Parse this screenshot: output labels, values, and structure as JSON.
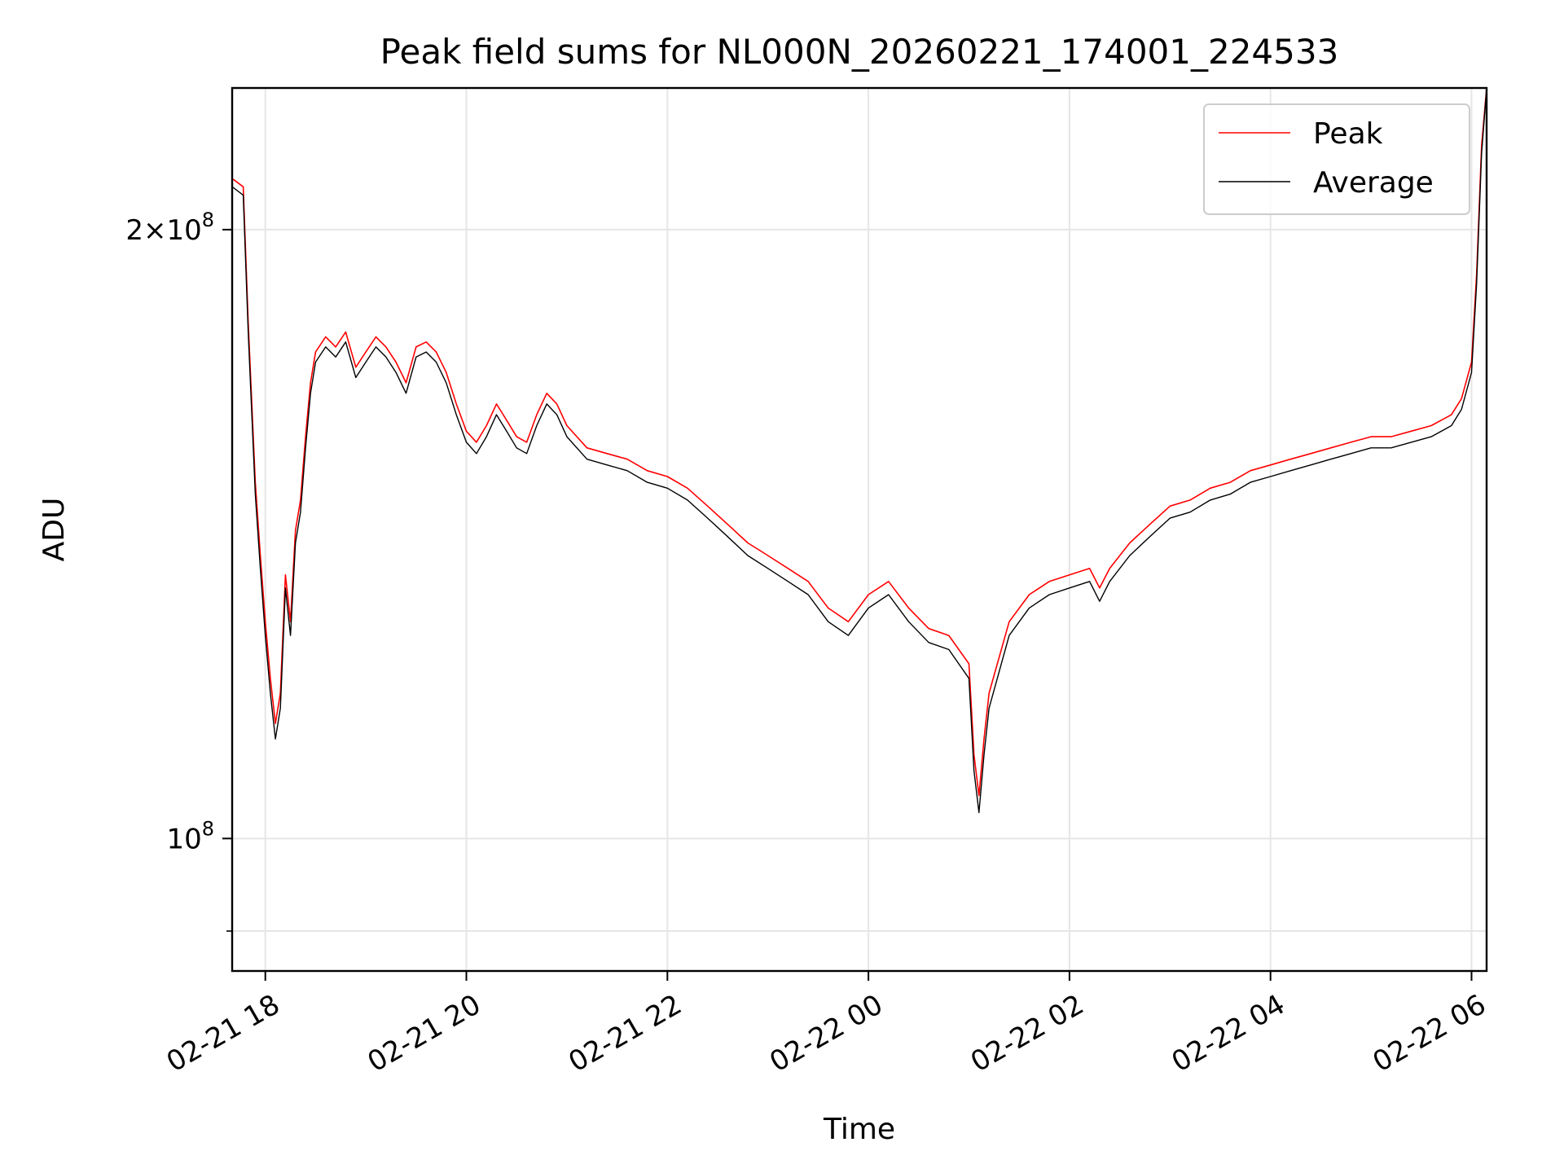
{
  "chart_data": {
    "type": "line",
    "title": "Peak field sums for NL000N_20260221_174001_224533",
    "xlabel": "Time",
    "ylabel": "ADU",
    "x_unit": "hours since 02-21 00:00",
    "xlim": [
      17.67,
      30.15
    ],
    "ylim": [
      86000000,
      235000000
    ],
    "yscale": "log",
    "grid": true,
    "legend_position": "top-right",
    "x_ticks": [
      {
        "value": 18,
        "label": "02-21 18"
      },
      {
        "value": 20,
        "label": "02-21 20"
      },
      {
        "value": 22,
        "label": "02-21 22"
      },
      {
        "value": 24,
        "label": "02-22 00"
      },
      {
        "value": 26,
        "label": "02-22 02"
      },
      {
        "value": 28,
        "label": "02-22 04"
      },
      {
        "value": 30,
        "label": "02-22 06"
      }
    ],
    "y_major_ticks": [
      {
        "value": 100000000,
        "base": "10",
        "exp": "8"
      },
      {
        "value": 200000000,
        "coef": "2",
        "times": "×",
        "base": "10",
        "exp": "8"
      }
    ],
    "y_minor_ticks": [
      90000000
    ],
    "series": [
      {
        "name": "Peak",
        "color": "#ff0000",
        "x": [
          17.67,
          17.78,
          17.83,
          17.9,
          17.95,
          18.0,
          18.05,
          18.1,
          18.15,
          18.2,
          18.25,
          18.3,
          18.35,
          18.4,
          18.45,
          18.5,
          18.6,
          18.7,
          18.8,
          18.9,
          19.0,
          19.1,
          19.2,
          19.3,
          19.4,
          19.5,
          19.6,
          19.7,
          19.8,
          19.9,
          20.0,
          20.1,
          20.2,
          20.3,
          20.4,
          20.5,
          20.6,
          20.7,
          20.8,
          20.9,
          21.0,
          21.2,
          21.4,
          21.6,
          21.8,
          22.0,
          22.2,
          22.4,
          22.6,
          22.8,
          23.0,
          23.2,
          23.4,
          23.6,
          23.8,
          24.0,
          24.2,
          24.4,
          24.6,
          24.8,
          25.0,
          25.05,
          25.1,
          25.15,
          25.2,
          25.4,
          25.6,
          25.8,
          26.0,
          26.2,
          26.3,
          26.4,
          26.6,
          26.8,
          27.0,
          27.2,
          27.4,
          27.6,
          27.8,
          28.0,
          28.2,
          28.4,
          28.6,
          28.8,
          29.0,
          29.2,
          29.4,
          29.6,
          29.8,
          29.9,
          30.0,
          30.05,
          30.1,
          30.15
        ],
        "values": [
          212000000,
          210000000,
          180000000,
          150000000,
          138000000,
          128000000,
          120000000,
          114000000,
          118000000,
          135000000,
          128000000,
          142000000,
          147000000,
          158000000,
          168000000,
          174000000,
          177000000,
          175000000,
          178000000,
          171000000,
          174000000,
          177000000,
          175000000,
          172000000,
          168000000,
          175000000,
          176000000,
          174000000,
          170000000,
          164000000,
          159000000,
          157000000,
          160000000,
          164000000,
          161000000,
          158000000,
          157000000,
          162000000,
          166000000,
          164000000,
          160000000,
          156000000,
          155000000,
          154000000,
          152000000,
          151000000,
          149000000,
          146000000,
          143000000,
          140000000,
          138000000,
          136000000,
          134000000,
          130000000,
          128000000,
          132000000,
          134000000,
          130000000,
          127000000,
          126000000,
          122000000,
          110000000,
          105000000,
          112000000,
          118000000,
          128000000,
          132000000,
          134000000,
          135000000,
          136000000,
          133000000,
          136000000,
          140000000,
          143000000,
          146000000,
          147000000,
          149000000,
          150000000,
          152000000,
          153000000,
          154000000,
          155000000,
          156000000,
          157000000,
          158000000,
          158000000,
          159000000,
          160000000,
          162000000,
          165000000,
          172000000,
          190000000,
          220000000,
          235000000
        ]
      },
      {
        "name": "Average",
        "color": "#000000",
        "x": [
          17.67,
          17.78,
          17.83,
          17.9,
          17.95,
          18.0,
          18.05,
          18.1,
          18.15,
          18.2,
          18.25,
          18.3,
          18.35,
          18.4,
          18.45,
          18.5,
          18.6,
          18.7,
          18.8,
          18.9,
          19.0,
          19.1,
          19.2,
          19.3,
          19.4,
          19.5,
          19.6,
          19.7,
          19.8,
          19.9,
          20.0,
          20.1,
          20.2,
          20.3,
          20.4,
          20.5,
          20.6,
          20.7,
          20.8,
          20.9,
          21.0,
          21.2,
          21.4,
          21.6,
          21.8,
          22.0,
          22.2,
          22.4,
          22.6,
          22.8,
          23.0,
          23.2,
          23.4,
          23.6,
          23.8,
          24.0,
          24.2,
          24.4,
          24.6,
          24.8,
          25.0,
          25.05,
          25.1,
          25.15,
          25.2,
          25.4,
          25.6,
          25.8,
          26.0,
          26.2,
          26.3,
          26.4,
          26.6,
          26.8,
          27.0,
          27.2,
          27.4,
          27.6,
          27.8,
          28.0,
          28.2,
          28.4,
          28.6,
          28.8,
          29.0,
          29.2,
          29.4,
          29.6,
          29.8,
          29.9,
          30.0,
          30.05,
          30.1,
          30.15
        ],
        "values": [
          210000000,
          208000000,
          178000000,
          148000000,
          136000000,
          126000000,
          118000000,
          112000000,
          116000000,
          133000000,
          126000000,
          140000000,
          145000000,
          156000000,
          166000000,
          172000000,
          175000000,
          173000000,
          176000000,
          169000000,
          172000000,
          175000000,
          173000000,
          170000000,
          166000000,
          173000000,
          174000000,
          172000000,
          168000000,
          162000000,
          157000000,
          155000000,
          158000000,
          162000000,
          159000000,
          156000000,
          155000000,
          160000000,
          164000000,
          162000000,
          158000000,
          154000000,
          153000000,
          152000000,
          150000000,
          149000000,
          147000000,
          144000000,
          141000000,
          138000000,
          136000000,
          134000000,
          132000000,
          128000000,
          126000000,
          130000000,
          132000000,
          128000000,
          125000000,
          124000000,
          120000000,
          108000000,
          103000000,
          110000000,
          116000000,
          126000000,
          130000000,
          132000000,
          133000000,
          134000000,
          131000000,
          134000000,
          138000000,
          141000000,
          144000000,
          145000000,
          147000000,
          148000000,
          150000000,
          151000000,
          152000000,
          153000000,
          154000000,
          155000000,
          156000000,
          156000000,
          157000000,
          158000000,
          160000000,
          163000000,
          170000000,
          188000000,
          218000000,
          235000000
        ]
      }
    ]
  }
}
